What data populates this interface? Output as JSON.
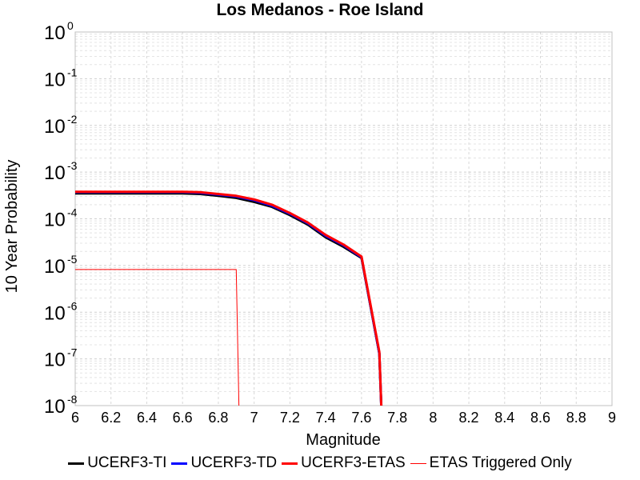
{
  "chart_data": {
    "type": "line",
    "title": "Los Medanos - Roe Island",
    "xlabel": "Magnitude",
    "ylabel": "10 Year Probability",
    "xlim": [
      6,
      9
    ],
    "ylim": [
      1e-08,
      1
    ],
    "yscale": "log",
    "grid": true,
    "legend_position": "bottom",
    "x_ticks": [
      "6",
      "6.2",
      "6.4",
      "6.6",
      "6.8",
      "7",
      "7.2",
      "7.4",
      "7.6",
      "7.8",
      "8",
      "8.2",
      "8.4",
      "8.6",
      "8.8",
      "9"
    ],
    "y_ticks": [
      {
        "base": "10",
        "exp": "0"
      },
      {
        "base": "10",
        "exp": "-1"
      },
      {
        "base": "10",
        "exp": "-2"
      },
      {
        "base": "10",
        "exp": "-3"
      },
      {
        "base": "10",
        "exp": "-4"
      },
      {
        "base": "10",
        "exp": "-5"
      },
      {
        "base": "10",
        "exp": "-6"
      },
      {
        "base": "10",
        "exp": "-7"
      },
      {
        "base": "10",
        "exp": "-8"
      }
    ],
    "series": [
      {
        "name": "UCERF3-TI",
        "color": "#000000",
        "width": 3,
        "x": [
          6.0,
          6.1,
          6.2,
          6.3,
          6.4,
          6.5,
          6.6,
          6.7,
          6.8,
          6.9,
          7.0,
          7.1,
          7.2,
          7.3,
          7.4,
          7.5,
          7.6,
          7.7,
          7.72
        ],
        "y": [
          0.00035,
          0.00035,
          0.00035,
          0.00035,
          0.00035,
          0.00035,
          0.00035,
          0.00034,
          0.00031,
          0.00028,
          0.00023,
          0.00018,
          0.00012,
          7.5e-05,
          4e-05,
          2.5e-05,
          1.45e-05,
          1.3e-07,
          1e-09
        ]
      },
      {
        "name": "UCERF3-TD",
        "color": "#0000ff",
        "width": 3,
        "x": [
          6.0,
          6.1,
          6.2,
          6.3,
          6.4,
          6.5,
          6.6,
          6.7,
          6.8,
          6.9,
          7.0,
          7.1,
          7.2,
          7.3,
          7.4,
          7.5,
          7.6,
          7.7,
          7.72
        ],
        "y": [
          0.00037,
          0.00037,
          0.00037,
          0.00037,
          0.00037,
          0.00037,
          0.00037,
          0.00036,
          0.00033,
          0.0003,
          0.00025,
          0.00019,
          0.000128,
          8e-05,
          4.3e-05,
          2.7e-05,
          1.5e-05,
          1.3e-07,
          1e-09
        ]
      },
      {
        "name": "UCERF3-ETAS",
        "color": "#ff0000",
        "width": 3,
        "x": [
          6.0,
          6.1,
          6.2,
          6.3,
          6.4,
          6.5,
          6.6,
          6.7,
          6.8,
          6.9,
          7.0,
          7.1,
          7.2,
          7.3,
          7.4,
          7.5,
          7.6,
          7.7,
          7.72
        ],
        "y": [
          0.00038,
          0.00038,
          0.00038,
          0.00038,
          0.00038,
          0.00038,
          0.00038,
          0.00037,
          0.00034,
          0.00031,
          0.00026,
          0.0002,
          0.000133,
          8.3e-05,
          4.5e-05,
          2.8e-05,
          1.55e-05,
          1.4e-07,
          1e-09
        ]
      },
      {
        "name": "ETAS Triggered Only",
        "color": "#ff0000",
        "width": 1,
        "x": [
          6.0,
          6.1,
          6.2,
          6.3,
          6.4,
          6.5,
          6.6,
          6.7,
          6.8,
          6.9,
          6.92
        ],
        "y": [
          8.2e-06,
          8.2e-06,
          8.2e-06,
          8.2e-06,
          8.2e-06,
          8.2e-06,
          8.2e-06,
          8.2e-06,
          8.2e-06,
          8.2e-06,
          1e-09
        ]
      }
    ]
  }
}
